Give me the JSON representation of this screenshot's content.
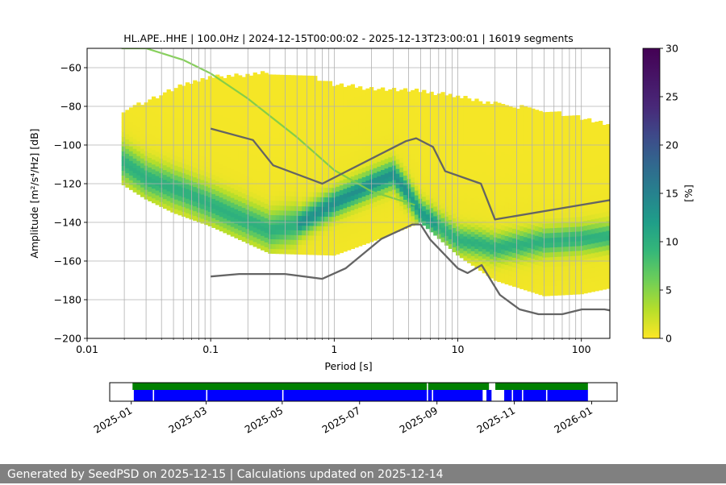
{
  "chart_data": [
    {
      "type": "heatmap",
      "title": "HL.APE..HHE | 100.0Hz | 2024-12-15T00:00:02 - 2025-12-13T23:00:01 | 16019 segments",
      "xlabel": "Period [s]",
      "ylabel": "Amplitude [m²/s⁴/Hz] [dB]",
      "x_scale": "log",
      "xlim": [
        0.01,
        170
      ],
      "ylim": [
        -200,
        -50
      ],
      "x_ticks": [
        0.01,
        0.1,
        1,
        10,
        100
      ],
      "x_tick_labels": [
        "0.01",
        "0.1",
        "1",
        "10",
        "100"
      ],
      "y_ticks": [
        -60,
        -80,
        -100,
        -120,
        -140,
        -160,
        -180,
        -200
      ],
      "y_tick_labels": [
        "−60",
        "−80",
        "−100",
        "−120",
        "−140",
        "−160",
        "−180",
        "−200"
      ],
      "grid": true,
      "colorbar": {
        "label": "[%]",
        "range": [
          0,
          30
        ],
        "ticks": [
          0,
          5,
          10,
          15,
          20,
          25,
          30
        ],
        "tick_labels": [
          "0",
          "5",
          "10",
          "15",
          "20",
          "25",
          "30"
        ]
      },
      "psd_density": {
        "period_range": [
          0.019,
          170
        ],
        "mode_curve": {
          "period": [
            0.019,
            0.03,
            0.06,
            0.15,
            0.3,
            0.5,
            1,
            2,
            3,
            4,
            5,
            7,
            10,
            15,
            20,
            50,
            170
          ],
          "db": [
            -108,
            -117,
            -124,
            -136,
            -144,
            -141,
            -130,
            -120,
            -115,
            -125,
            -135,
            -142,
            -149,
            -151,
            -153,
            -150,
            -147
          ]
        },
        "upper_envelope": {
          "period": [
            0.019,
            0.025,
            0.05,
            0.1,
            0.3,
            0.7,
            1,
            2,
            5,
            10,
            20,
            50,
            100,
            170
          ],
          "db": [
            -86,
            -81,
            -72,
            -66,
            -64,
            -66,
            -70,
            -72,
            -73,
            -76,
            -80,
            -83,
            -87,
            -91
          ]
        },
        "lower_envelope": {
          "period": [
            0.019,
            0.03,
            0.05,
            0.1,
            0.3,
            1,
            2,
            5,
            10,
            20,
            50,
            100,
            170
          ],
          "db": [
            -120,
            -128,
            -135,
            -142,
            -156,
            -157,
            -150,
            -140,
            -157,
            -170,
            -178,
            -177,
            -174
          ]
        },
        "diagonal_trace": {
          "period": [
            0.019,
            0.03,
            0.06,
            0.1,
            0.2,
            0.5,
            1,
            2,
            4.5
          ],
          "db": [
            -50,
            -50,
            -56,
            -63,
            -76,
            -96,
            -113,
            -124,
            -131
          ]
        }
      },
      "series": [
        {
          "name": "NHNM",
          "color": "#646464",
          "x": [
            0.1,
            0.22,
            0.32,
            0.8,
            3.8,
            4.6,
            6.3,
            7.9,
            15.4,
            20,
            170
          ],
          "y": [
            -91.5,
            -97.4,
            -110.5,
            -120,
            -98,
            -96.5,
            -101,
            -113.5,
            -120,
            -138.5,
            -128.5
          ]
        },
        {
          "name": "NLNM",
          "color": "#646464",
          "x": [
            0.1,
            0.17,
            0.4,
            0.8,
            1.24,
            2.4,
            4.3,
            5,
            6,
            10,
            12,
            15.6,
            21.9,
            31.6,
            45,
            70,
            101,
            154,
            170
          ],
          "y": [
            -168,
            -166.7,
            -166.7,
            -169.2,
            -163.7,
            -148.6,
            -141.1,
            -141.1,
            -149,
            -163.8,
            -166.2,
            -162.1,
            -177.5,
            -185,
            -187.5,
            -187.5,
            -185,
            -185,
            -185.5
          ]
        }
      ]
    },
    {
      "type": "timeline",
      "x_ticks": [
        "2025-01",
        "2025-03",
        "2025-05",
        "2025-07",
        "2025-09",
        "2025-11",
        "2026-01"
      ],
      "x_tick_days": [
        17,
        76,
        136,
        197,
        258,
        319,
        380
      ],
      "xlim_days": [
        0,
        400
      ],
      "series": [
        {
          "name": "data-availability",
          "color": "#008000",
          "spans_days": [
            [
              18,
              299
            ],
            [
              304,
              377
            ]
          ],
          "gaps_days": [
            [
              250,
              251
            ]
          ]
        },
        {
          "name": "psd-segments",
          "color": "#0000ff",
          "spans_days": [
            [
              19,
              294
            ],
            [
              297,
              301
            ],
            [
              311,
              377
            ]
          ],
          "gaps_days": [
            [
              34,
              35
            ],
            [
              76,
              77
            ],
            [
              136,
              137
            ],
            [
              250,
              251
            ],
            [
              254,
              255
            ],
            [
              317,
              318
            ],
            [
              325,
              326
            ],
            [
              344,
              345
            ]
          ]
        }
      ]
    }
  ],
  "footer": {
    "text": "Generated by SeedPSD on 2025-12-15 | Calculations updated on 2025-12-14"
  }
}
